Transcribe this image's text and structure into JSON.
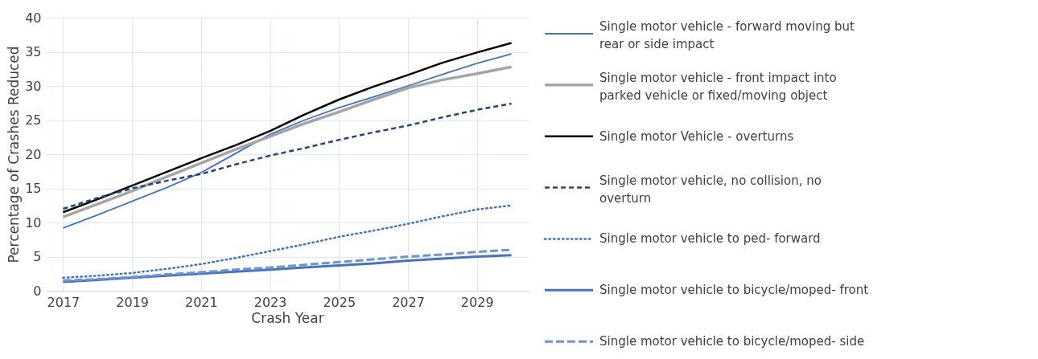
{
  "chart_data": {
    "type": "line",
    "xlabel": "Crash Year",
    "ylabel": "Percentage of Crashes Reduced",
    "x": [
      2017,
      2018,
      2019,
      2020,
      2021,
      2022,
      2023,
      2024,
      2025,
      2026,
      2027,
      2028,
      2029,
      2030
    ],
    "series": [
      {
        "name": "Single motor vehicle - forward moving but rear or side impact",
        "color": "#4472c4",
        "line_style": "solid",
        "values": [
          9.2,
          11.1,
          13.1,
          15.1,
          17.3,
          20.1,
          22.9,
          25.0,
          26.8,
          28.4,
          30.0,
          31.7,
          33.3,
          34.7
        ]
      },
      {
        "name": "Single motor vehicle - front impact into parked vehicle or fixed/moving object",
        "color": "#a5a5a5",
        "line_style": "solid",
        "values": [
          10.8,
          12.7,
          14.6,
          16.7,
          18.7,
          20.7,
          22.6,
          24.5,
          26.2,
          28.0,
          29.7,
          30.9,
          31.8,
          32.8
        ]
      },
      {
        "name": "Single motor Vehicle - overturns",
        "color": "#000000",
        "line_style": "solid",
        "values": [
          11.5,
          13.4,
          15.4,
          17.4,
          19.4,
          21.3,
          23.4,
          25.8,
          28.0,
          29.9,
          31.6,
          33.4,
          34.9,
          36.3
        ]
      },
      {
        "name": "Single motor vehicle, no collision, no overturn",
        "color": "#264478",
        "line_style": "dashed",
        "values": [
          12.0,
          13.6,
          15.0,
          16.1,
          17.1,
          18.5,
          19.8,
          20.9,
          22.1,
          23.2,
          24.2,
          25.4,
          26.5,
          27.4
        ]
      },
      {
        "name": "Single motor vehicle to ped- forward",
        "color": "#4472c4",
        "line_style": "dotted",
        "values": [
          1.9,
          2.2,
          2.6,
          3.2,
          3.9,
          4.8,
          5.8,
          6.8,
          7.9,
          8.8,
          9.8,
          10.9,
          11.9,
          12.5
        ]
      },
      {
        "name": "Single motor vehicle to bicycle/moped- front",
        "color": "#4472c4",
        "line_style": "solid",
        "values": [
          1.3,
          1.6,
          1.9,
          2.2,
          2.5,
          2.8,
          3.1,
          3.4,
          3.7,
          4.0,
          4.4,
          4.7,
          5.0,
          5.2
        ]
      },
      {
        "name": "Single motor vehicle to bicycle/moped- side",
        "color": "#6f94d6",
        "line_style": "dashed",
        "values": [
          1.5,
          1.7,
          2.0,
          2.4,
          2.7,
          3.1,
          3.4,
          3.8,
          4.2,
          4.6,
          5.0,
          5.3,
          5.7,
          6.0
        ]
      }
    ],
    "xlim": [
      2016.5,
      2030.5
    ],
    "xticks": [
      2017,
      2019,
      2021,
      2023,
      2025,
      2027,
      2029
    ],
    "ylim": [
      0,
      40
    ],
    "yticks": [
      0,
      5,
      10,
      15,
      20,
      25,
      30,
      35,
      40
    ],
    "grid": true,
    "legend": "right",
    "marker": "none"
  }
}
